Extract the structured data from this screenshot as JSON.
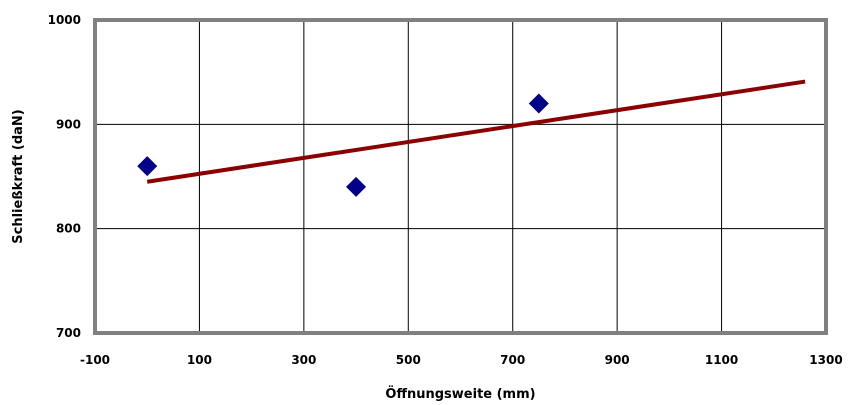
{
  "chart_data": {
    "type": "scatter",
    "xlabel": "Öffnungsweite (mm)",
    "ylabel": "Schließkraft (daN)",
    "xlim": [
      -100,
      1300
    ],
    "ylim": [
      700,
      1000
    ],
    "x_ticks": [
      "-100",
      "100",
      "300",
      "500",
      "700",
      "900",
      "1100",
      "1300"
    ],
    "y_ticks": [
      "700",
      "800",
      "900",
      "1000"
    ],
    "grid": true,
    "points": [
      {
        "x": 0,
        "y": 860
      },
      {
        "x": 400,
        "y": 840
      },
      {
        "x": 750,
        "y": 920
      }
    ],
    "trendline": {
      "x": [
        0,
        1260
      ],
      "y": [
        845,
        941
      ]
    },
    "colors": {
      "points": "#00008b",
      "trendline": "#8b0000",
      "frame": "#808080",
      "grid": "#000000"
    }
  }
}
